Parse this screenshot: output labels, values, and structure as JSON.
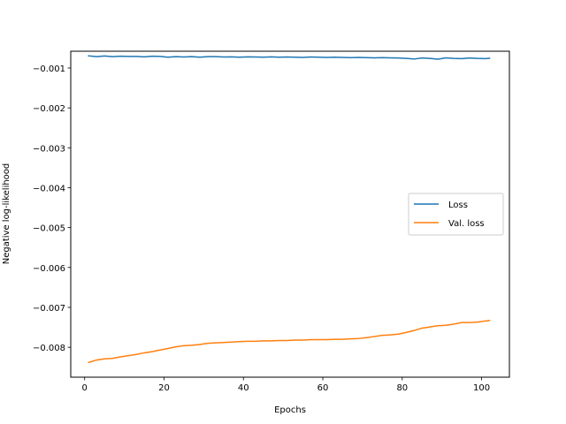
{
  "chart_data": {
    "type": "line",
    "title": "",
    "xlabel": "Epochs",
    "ylabel": "Negative log-likelihood",
    "xlim": [
      -3.5,
      107
    ],
    "ylim": [
      -0.00875,
      -0.00058
    ],
    "xticks": [
      0,
      20,
      40,
      60,
      80,
      100
    ],
    "xtick_labels": [
      "0",
      "20",
      "40",
      "60",
      "80",
      "100"
    ],
    "yticks": [
      -0.001,
      -0.002,
      -0.003,
      -0.004,
      -0.005,
      -0.006,
      -0.007,
      -0.008
    ],
    "ytick_labels": [
      "−0.001",
      "−0.002",
      "−0.003",
      "−0.004",
      "−0.005",
      "−0.006",
      "−0.007",
      "−0.008"
    ],
    "grid": false,
    "legend_position": "center-right",
    "series": [
      {
        "name": "Loss",
        "color": "#1f77b4",
        "x": [
          1,
          3,
          5,
          7,
          9,
          11,
          13,
          15,
          17,
          19,
          21,
          23,
          25,
          27,
          29,
          31,
          33,
          35,
          37,
          39,
          41,
          43,
          45,
          47,
          49,
          51,
          53,
          55,
          57,
          59,
          61,
          63,
          65,
          67,
          69,
          71,
          73,
          75,
          77,
          79,
          81,
          83,
          85,
          87,
          89,
          91,
          93,
          95,
          97,
          99,
          101,
          102
        ],
        "y": [
          -0.000695,
          -0.000715,
          -0.0007,
          -0.000715,
          -0.000705,
          -0.00071,
          -0.00071,
          -0.00072,
          -0.000705,
          -0.00071,
          -0.00073,
          -0.000715,
          -0.000725,
          -0.000715,
          -0.00073,
          -0.000715,
          -0.000715,
          -0.000725,
          -0.00072,
          -0.00073,
          -0.00072,
          -0.000725,
          -0.00073,
          -0.00072,
          -0.00073,
          -0.000725,
          -0.00073,
          -0.000735,
          -0.000725,
          -0.00073,
          -0.000735,
          -0.00073,
          -0.000735,
          -0.00074,
          -0.000735,
          -0.00074,
          -0.000745,
          -0.00074,
          -0.000745,
          -0.00075,
          -0.00076,
          -0.000775,
          -0.00075,
          -0.00076,
          -0.00078,
          -0.000745,
          -0.00076,
          -0.000765,
          -0.00075,
          -0.00076,
          -0.000765,
          -0.000755
        ]
      },
      {
        "name": "Val. loss",
        "color": "#ff7f0e",
        "x": [
          1,
          3,
          5,
          7,
          9,
          11,
          13,
          15,
          17,
          19,
          21,
          23,
          25,
          27,
          29,
          31,
          33,
          35,
          37,
          39,
          41,
          43,
          45,
          47,
          49,
          51,
          53,
          55,
          57,
          59,
          61,
          63,
          65,
          67,
          69,
          71,
          73,
          75,
          77,
          79,
          81,
          83,
          85,
          87,
          89,
          91,
          93,
          95,
          97,
          99,
          101,
          102
        ],
        "y": [
          -0.00838,
          -0.00832,
          -0.00829,
          -0.00828,
          -0.00824,
          -0.00821,
          -0.00818,
          -0.00814,
          -0.00811,
          -0.00807,
          -0.00803,
          -0.00799,
          -0.00796,
          -0.00795,
          -0.00793,
          -0.0079,
          -0.00789,
          -0.00788,
          -0.00787,
          -0.00786,
          -0.00785,
          -0.00785,
          -0.00784,
          -0.00784,
          -0.00783,
          -0.00783,
          -0.00782,
          -0.00782,
          -0.00781,
          -0.00781,
          -0.00781,
          -0.0078,
          -0.0078,
          -0.00779,
          -0.00778,
          -0.00776,
          -0.00773,
          -0.0077,
          -0.00769,
          -0.00767,
          -0.00763,
          -0.00758,
          -0.00752,
          -0.00749,
          -0.00746,
          -0.00745,
          -0.00742,
          -0.00738,
          -0.00738,
          -0.00737,
          -0.00734,
          -0.00733
        ]
      }
    ]
  }
}
